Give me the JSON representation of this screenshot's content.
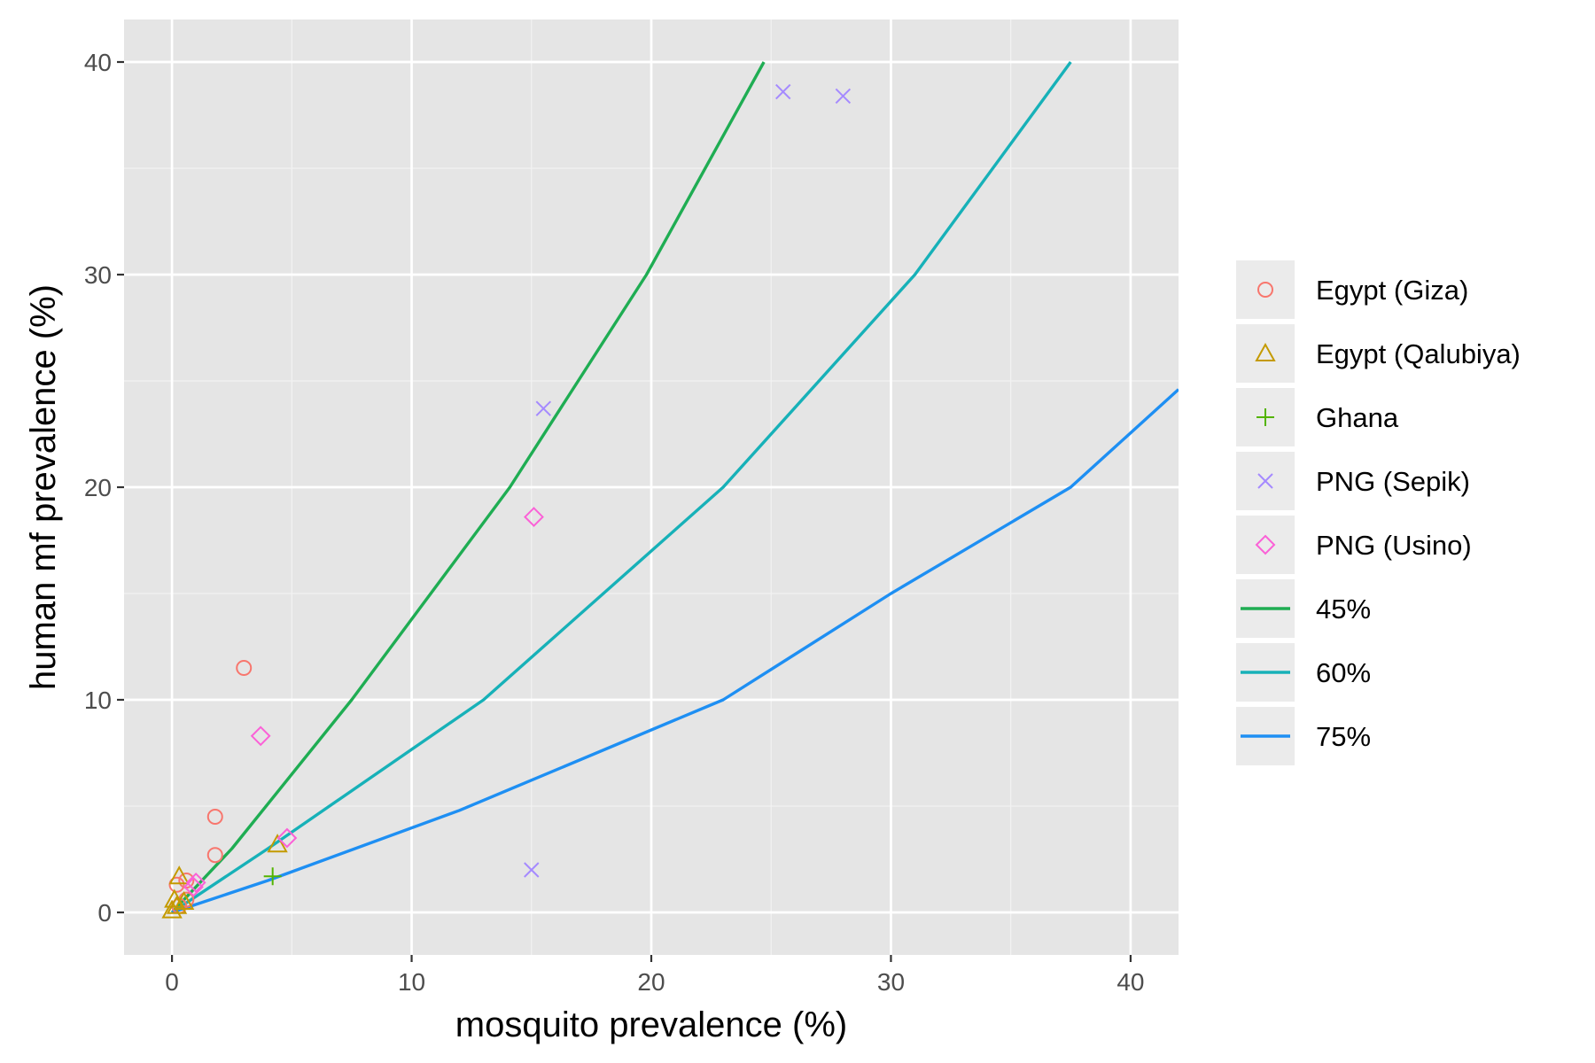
{
  "chart_data": {
    "type": "scatter",
    "xlabel": "mosquito prevalence (%)",
    "ylabel": "human mf prevalence (%)",
    "xlim": [
      -2,
      42
    ],
    "ylim": [
      -2,
      42
    ],
    "x_ticks": [
      0,
      10,
      20,
      30,
      40
    ],
    "y_ticks": [
      0,
      10,
      20,
      30,
      40
    ],
    "x_tick_labels": [
      "0",
      "10",
      "20",
      "30",
      "40"
    ],
    "y_tick_labels": [
      "0",
      "10",
      "20",
      "30",
      "40"
    ],
    "grid": true,
    "background": "#e5e5e5",
    "legend_position": "right",
    "point_series": [
      {
        "name": "Egypt (Giza)",
        "shape": "circle",
        "color": "#f8766d",
        "points": [
          [
            0.2,
            1.3
          ],
          [
            0.6,
            0.6
          ],
          [
            0.3,
            0.3
          ],
          [
            0.6,
            1.5
          ],
          [
            1.8,
            4.5
          ],
          [
            1.8,
            2.7
          ],
          [
            3.0,
            11.5
          ]
        ]
      },
      {
        "name": "Egypt (Qalubiya)",
        "shape": "triangle",
        "color": "#c49a00",
        "points": [
          [
            0.0,
            0.1
          ],
          [
            0.1,
            0.6
          ],
          [
            0.2,
            0.3
          ],
          [
            0.3,
            1.7
          ],
          [
            0.5,
            0.5
          ],
          [
            4.4,
            3.2
          ]
        ]
      },
      {
        "name": "Ghana",
        "shape": "plus",
        "color": "#53b400",
        "points": [
          [
            4.2,
            1.7
          ]
        ]
      },
      {
        "name": "PNG (Sepik)",
        "shape": "cross",
        "color": "#a58aff",
        "points": [
          [
            15.0,
            2.0
          ],
          [
            15.5,
            23.7
          ],
          [
            25.5,
            38.6
          ],
          [
            28.0,
            38.4
          ]
        ]
      },
      {
        "name": "PNG (Usino)",
        "shape": "diamond",
        "color": "#fb61d7",
        "points": [
          [
            0.9,
            1.2
          ],
          [
            1.0,
            1.4
          ],
          [
            3.7,
            8.3
          ],
          [
            4.8,
            3.5
          ],
          [
            15.1,
            18.6
          ]
        ]
      }
    ],
    "line_series": [
      {
        "name": "45%",
        "color": "#1fad53",
        "points": [
          [
            0,
            0
          ],
          [
            2.5,
            3
          ],
          [
            7.5,
            10
          ],
          [
            14.1,
            20
          ],
          [
            19.8,
            30
          ],
          [
            24.7,
            40
          ]
        ]
      },
      {
        "name": "60%",
        "color": "#17b1b8",
        "points": [
          [
            0,
            0
          ],
          [
            4,
            3
          ],
          [
            13,
            10
          ],
          [
            23,
            20
          ],
          [
            31,
            30
          ],
          [
            37.5,
            40
          ]
        ]
      },
      {
        "name": "75%",
        "color": "#1e8ff3",
        "points": [
          [
            0,
            0
          ],
          [
            4,
            1.5
          ],
          [
            12,
            4.8
          ],
          [
            23,
            10
          ],
          [
            30,
            15
          ],
          [
            37.5,
            20
          ],
          [
            42,
            24.6
          ]
        ]
      }
    ]
  }
}
